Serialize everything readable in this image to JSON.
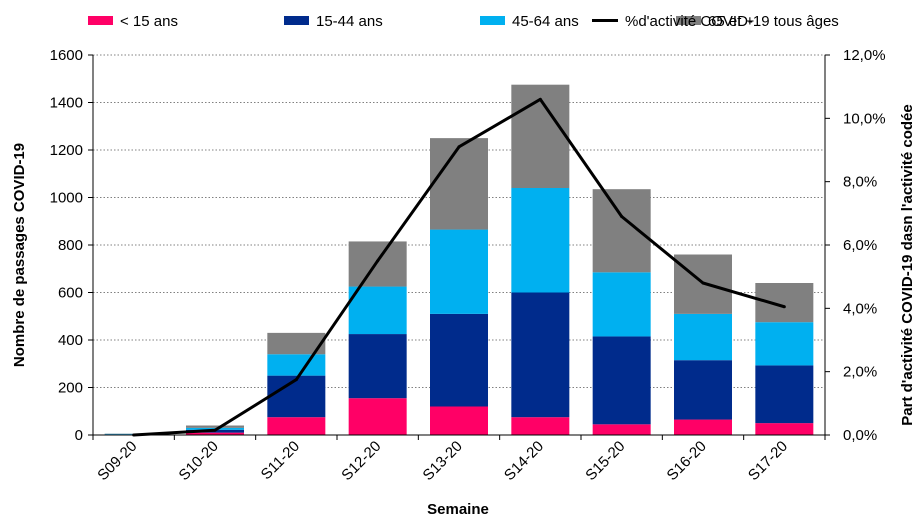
{
  "chart_data": {
    "type": "bar",
    "stacked": true,
    "categories": [
      "S09-20",
      "S10-20",
      "S11-20",
      "S12-20",
      "S13-20",
      "S14-20",
      "S15-20",
      "S16-20",
      "S17-20"
    ],
    "series": [
      {
        "name": "< 15 ans",
        "color": "#ff0066",
        "values": [
          1,
          10,
          75,
          155,
          120,
          75,
          45,
          65,
          50
        ]
      },
      {
        "name": "15-44 ans",
        "color": "#002b8c",
        "values": [
          2,
          12,
          175,
          270,
          390,
          525,
          370,
          250,
          243
        ]
      },
      {
        "name": "45-64 ans",
        "color": "#00b0f0",
        "values": [
          2,
          8,
          90,
          200,
          355,
          440,
          270,
          195,
          182
        ]
      },
      {
        "name": "65 et +",
        "color": "#808080",
        "values": [
          1,
          10,
          90,
          190,
          385,
          435,
          350,
          250,
          165
        ]
      }
    ],
    "line_series": {
      "name": "%d'activité COVID-19 tous âges",
      "color": "#000000",
      "values": [
        0.0,
        0.15,
        1.75,
        5.5,
        9.1,
        10.6,
        6.9,
        4.8,
        4.05
      ]
    },
    "xlabel": "Semaine",
    "ylabel": "Nombre de passages COVID-19",
    "y2label": "Part d'activité COVID-19 dasn l'activité codée",
    "ylim": [
      0,
      1600
    ],
    "yticks": [
      "0",
      "200",
      "400",
      "600",
      "800",
      "1000",
      "1200",
      "1400",
      "1600"
    ],
    "y2lim": [
      0,
      12
    ],
    "y2ticks": [
      "0,0%",
      "2,0%",
      "4,0%",
      "6,0%",
      "8,0%",
      "10,0%",
      "12,0%"
    ],
    "grid": "horizontal dotted",
    "legend_position": "top"
  }
}
